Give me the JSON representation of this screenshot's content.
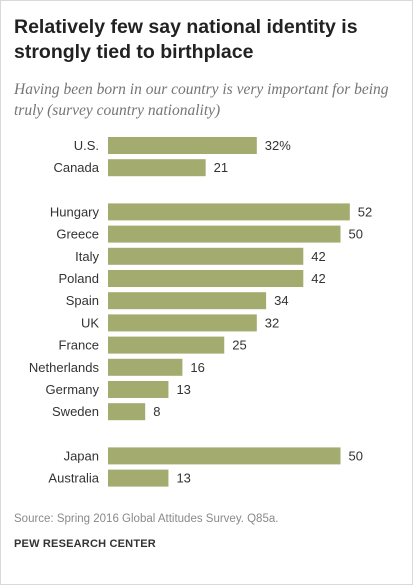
{
  "title": "Relatively few say national identity is strongly tied to birthplace",
  "subtitle": "Having been born in our country is very important for being truly (survey country nationality)",
  "source": "Source: Spring 2016 Global Attitudes Survey. Q85a.",
  "credit": "PEW RESEARCH CENTER",
  "chart_data": {
    "type": "bar",
    "orientation": "horizontal",
    "bar_color": "#a3ac6e",
    "xlim": [
      0,
      100
    ],
    "grid": false,
    "groups": [
      {
        "categories": [
          "U.S.",
          "Canada"
        ],
        "values": [
          32,
          21
        ],
        "labels": [
          "32%",
          "21"
        ]
      },
      {
        "categories": [
          "Hungary",
          "Greece",
          "Italy",
          "Poland",
          "Spain",
          "UK",
          "France",
          "Netherlands",
          "Germany",
          "Sweden"
        ],
        "values": [
          52,
          50,
          42,
          42,
          34,
          32,
          25,
          16,
          13,
          8
        ],
        "labels": [
          "52",
          "50",
          "42",
          "42",
          "34",
          "32",
          "25",
          "16",
          "13",
          "8"
        ]
      },
      {
        "categories": [
          "Japan",
          "Australia"
        ],
        "values": [
          50,
          13
        ],
        "labels": [
          "50",
          "13"
        ]
      }
    ]
  }
}
